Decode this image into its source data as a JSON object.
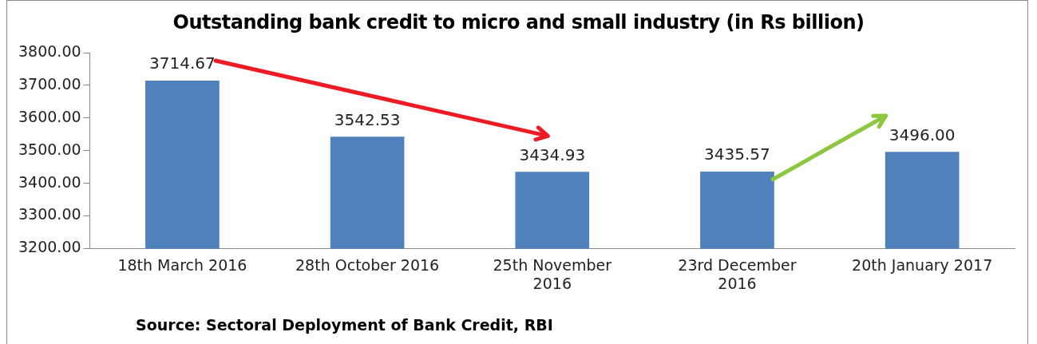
{
  "chart_data": {
    "type": "bar",
    "title": "Outstanding bank credit to micro and small industry (in Rs billion)",
    "categories": [
      "18th March 2016",
      "28th October 2016",
      "25th November 2016",
      "23rd December 2016",
      "20th January 2017"
    ],
    "values": [
      3714.67,
      3542.53,
      3434.93,
      3435.57,
      3496.0
    ],
    "value_labels": [
      "3714.67",
      "3542.53",
      "3434.93",
      "3435.57",
      "3496.00"
    ],
    "color": "#4f81bd",
    "ylim": [
      3200,
      3800
    ],
    "yticks": [
      {
        "value": 3200,
        "label": "3200.00"
      },
      {
        "value": 3300,
        "label": "3300.00"
      },
      {
        "value": 3400,
        "label": "3400.00"
      },
      {
        "value": 3500,
        "label": "3500.00"
      },
      {
        "value": 3600,
        "label": "3600.00"
      },
      {
        "value": 3700,
        "label": "3700.00"
      },
      {
        "value": 3800,
        "label": "3800.00"
      }
    ],
    "grid": false,
    "legend": false,
    "annotations": [
      "Source: Sectoral Deployment of Bank Credit, RBI"
    ]
  }
}
